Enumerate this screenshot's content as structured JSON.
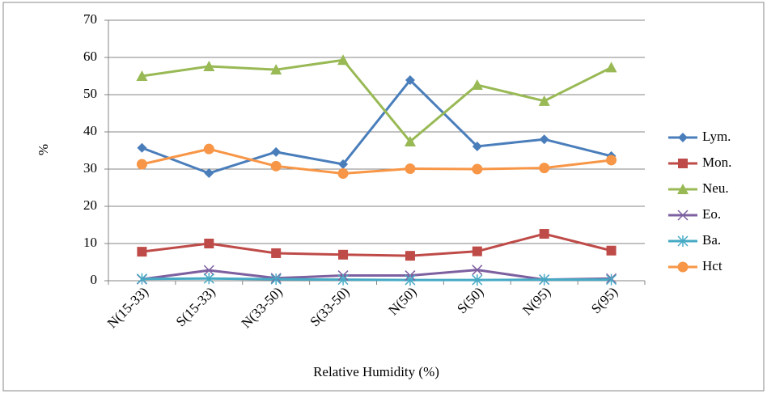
{
  "chart_data": {
    "type": "line",
    "x_label": "Relative Humidity (%)",
    "y_label": "%",
    "categories": [
      "N(15-33)",
      "S(15-33)",
      "N(33-50)",
      "S(33-50)",
      "N(50)",
      "S(50)",
      "N(95)",
      "S(95)"
    ],
    "series": [
      {
        "name": "Lym.",
        "color": "#4a7ebb",
        "marker": "diamond",
        "values": [
          35.7,
          28.9,
          34.6,
          31.3,
          53.9,
          36.1,
          38.0,
          33.5
        ]
      },
      {
        "name": "Mon.",
        "color": "#be4b48",
        "marker": "square",
        "values": [
          7.8,
          10.0,
          7.4,
          7.0,
          6.7,
          7.9,
          12.6,
          8.1
        ]
      },
      {
        "name": "Neu.",
        "color": "#98b954",
        "marker": "triangle",
        "values": [
          55.0,
          57.6,
          56.7,
          59.3,
          37.4,
          52.6,
          48.3,
          57.3
        ]
      },
      {
        "name": "Eo.",
        "color": "#7d60a0",
        "marker": "x",
        "values": [
          0.4,
          2.8,
          0.7,
          1.4,
          1.4,
          2.9,
          0.3,
          0.6
        ]
      },
      {
        "name": "Ba.",
        "color": "#46aac5",
        "marker": "star",
        "values": [
          0.5,
          0.6,
          0.4,
          0.3,
          0.2,
          0.2,
          0.3,
          0.3
        ]
      },
      {
        "name": "Hct",
        "color": "#f79646",
        "marker": "circle",
        "values": [
          31.3,
          35.4,
          30.8,
          28.8,
          30.1,
          30.0,
          30.3,
          32.4
        ]
      }
    ],
    "ylim": [
      0,
      70
    ],
    "yticks": [
      0,
      10,
      20,
      30,
      40,
      50,
      60,
      70
    ],
    "grid": true,
    "legend": "right"
  }
}
